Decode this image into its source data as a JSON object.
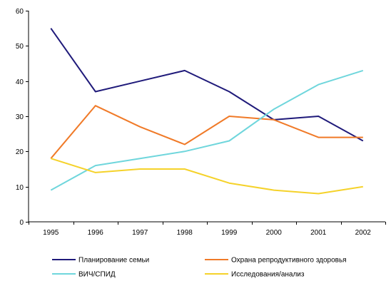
{
  "chart_data": {
    "type": "line",
    "title": "",
    "xlabel": "",
    "ylabel": "",
    "x": [
      "1995",
      "1996",
      "1997",
      "1998",
      "1999",
      "2000",
      "2001",
      "2002"
    ],
    "ylim": [
      0,
      60
    ],
    "yticks": [
      0,
      10,
      20,
      30,
      40,
      50,
      60
    ],
    "grid": false,
    "legend_position": "bottom",
    "series": [
      {
        "name": "Планирование семьи",
        "color": "#1f1a7a",
        "values": [
          55,
          37,
          40,
          43,
          37,
          29,
          30,
          23
        ]
      },
      {
        "name": "Охрана репродуктивного здоровья",
        "color": "#f07a28",
        "values": [
          18,
          33,
          27,
          22,
          30,
          29,
          24,
          24
        ]
      },
      {
        "name": "ВИЧ/СПИД",
        "color": "#6fd6dc",
        "values": [
          9,
          16,
          18,
          20,
          23,
          32,
          39,
          43
        ]
      },
      {
        "name": "Исследования/анализ",
        "color": "#f5d22a",
        "values": [
          18,
          14,
          15,
          15,
          11,
          9,
          8,
          10
        ]
      }
    ]
  }
}
